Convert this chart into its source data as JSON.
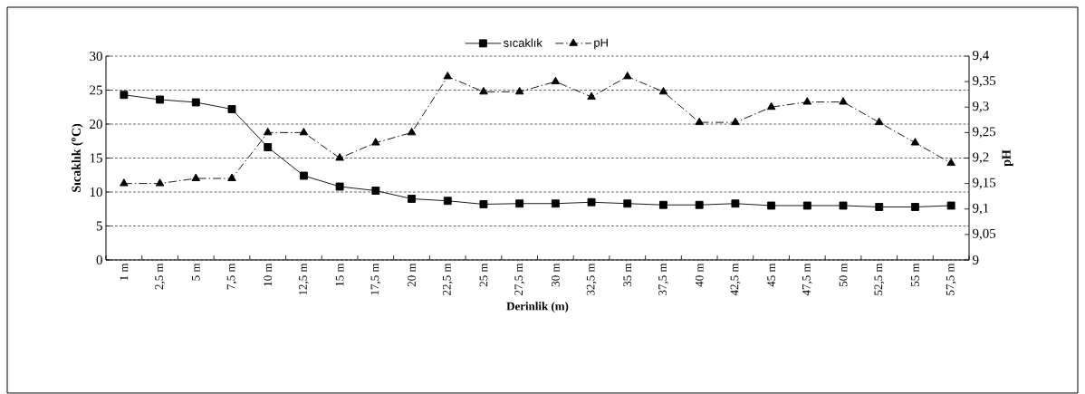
{
  "chart_data": {
    "type": "line",
    "xlabel": "Derinlik (m)",
    "ylabel": "Sıcaklık ($^{o}$C)",
    "y2label": "pH",
    "categories": [
      "1 m",
      "2,5 m",
      "5 m",
      "7,5 m",
      "10 m",
      "12,5 m",
      "15 m",
      "17,5 m",
      "20 m",
      "22,5 m",
      "25 m",
      "27,5 m",
      "30 m",
      "32,5 m",
      "35 m",
      "37,5 m",
      "40 m",
      "42,5 m",
      "45 m",
      "47,5 m",
      "50 m",
      "52,5 m",
      "55 m",
      "57,5 m"
    ],
    "series": [
      {
        "name": "sıcaklık",
        "color": "#000000",
        "marker": "square",
        "line_style": "solid",
        "values": [
          24.3,
          23.6,
          23.2,
          22.2,
          16.6,
          12.4,
          10.8,
          10.2,
          9.0,
          8.7,
          8.2,
          8.3,
          8.3,
          8.5,
          8.3,
          8.1,
          8.1,
          8.3,
          8.0,
          8.0,
          8.0,
          7.8,
          7.8,
          8.0
        ]
      },
      {
        "name": "pH",
        "color": "#000000",
        "marker": "triangle",
        "line_style": "dashdot",
        "axis": "y2",
        "values": [
          9.15,
          9.15,
          9.16,
          9.16,
          9.25,
          9.25,
          9.2,
          9.23,
          9.25,
          9.36,
          9.33,
          9.33,
          9.35,
          9.32,
          9.36,
          9.33,
          9.27,
          9.27,
          9.3,
          9.31,
          9.31,
          9.27,
          9.23,
          9.19
        ]
      }
    ],
    "ylim": [
      0,
      30
    ],
    "yticks": [
      0,
      5,
      10,
      15,
      20,
      25,
      30
    ],
    "y2lim": [
      9,
      9.4
    ],
    "y2ticks": [
      9,
      {
        "value": 9.05,
        "label": "9,05"
      },
      {
        "value": 9.1,
        "label": "9,1"
      },
      {
        "value": 9.15,
        "label": "9,15"
      },
      {
        "value": 9.2,
        "label": "9,2"
      },
      {
        "value": 9.25,
        "label": "9,25"
      },
      {
        "value": 9.3,
        "label": "9,3"
      },
      {
        "value": 9.35,
        "label": "9,35"
      },
      {
        "value": 9.4,
        "label": "9,4"
      }
    ],
    "grid": "y",
    "legend": "top"
  }
}
